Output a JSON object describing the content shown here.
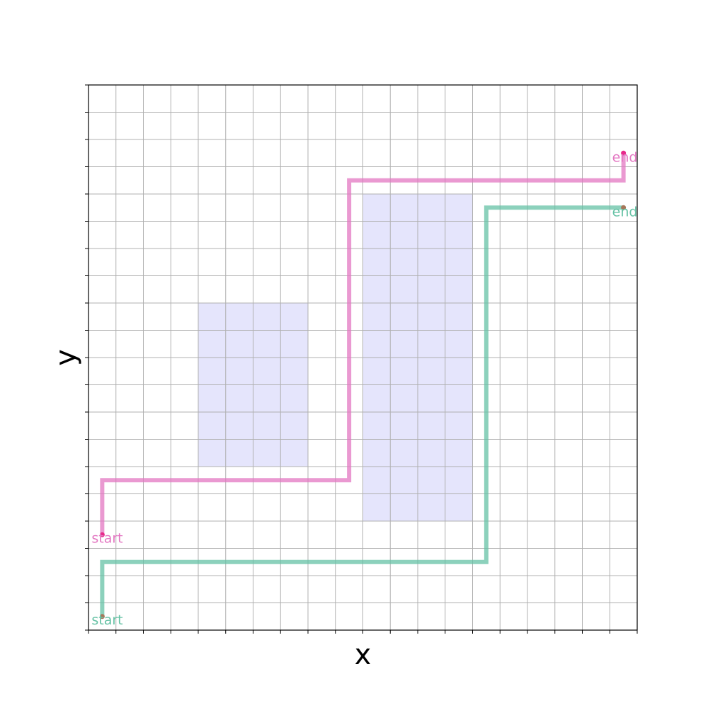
{
  "chart_data": {
    "type": "scatter",
    "xlabel": "x",
    "ylabel": "y",
    "xlim": [
      0,
      20
    ],
    "ylim": [
      0,
      20
    ],
    "grid": true,
    "tick_labels": false,
    "obstacles": [
      {
        "x": [
          4,
          8
        ],
        "y": [
          6,
          12
        ]
      },
      {
        "x": [
          10,
          14
        ],
        "y": [
          4,
          16
        ]
      }
    ],
    "series": [
      {
        "color": "#e377c2",
        "marker_color": "#e7298a",
        "points": [
          [
            0.5,
            3.5
          ],
          [
            0.5,
            5.5
          ],
          [
            9.5,
            5.5
          ],
          [
            9.5,
            16.5
          ],
          [
            19.5,
            16.5
          ],
          [
            19.5,
            17.5
          ]
        ],
        "start_label": "start",
        "end_label": "end"
      },
      {
        "color": "#66c2a5",
        "marker_color": "#a6775a",
        "points": [
          [
            0.5,
            0.5
          ],
          [
            0.5,
            2.5
          ],
          [
            14.5,
            2.5
          ],
          [
            14.5,
            15.5
          ],
          [
            19.5,
            15.5
          ]
        ],
        "start_label": "start",
        "end_label": "end"
      }
    ]
  }
}
